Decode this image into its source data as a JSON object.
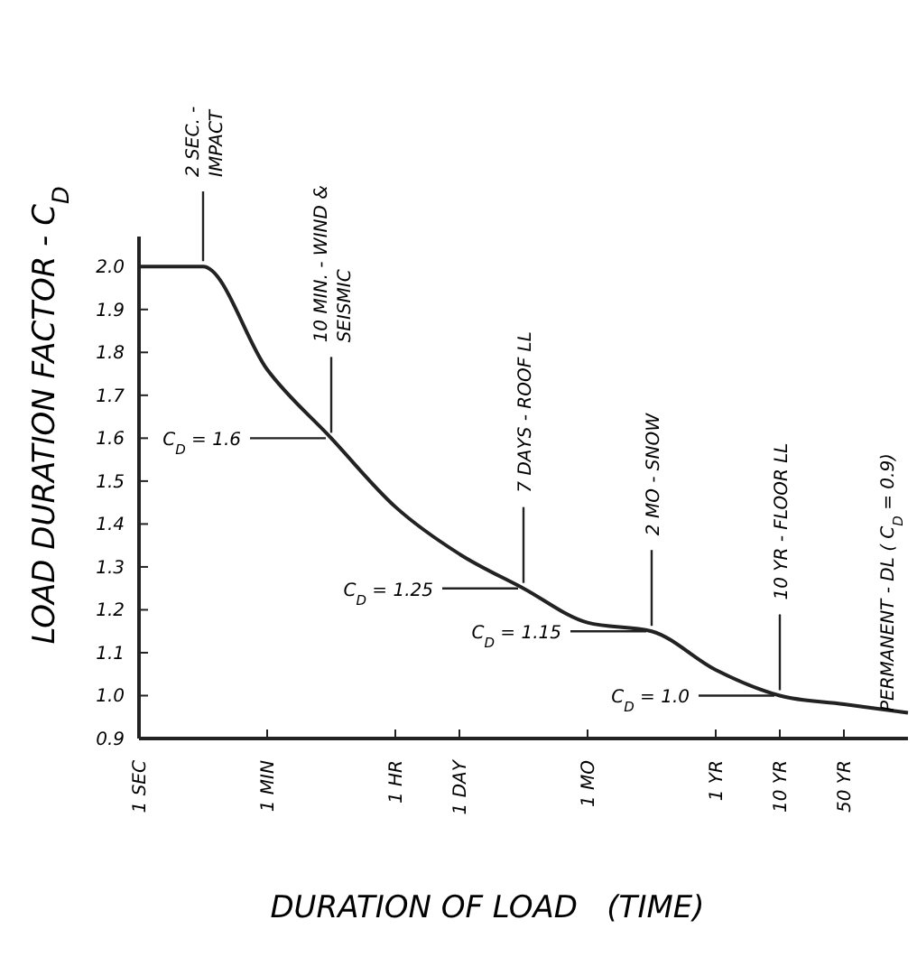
{
  "chart_data": {
    "type": "line",
    "xlabel": "DURATION OF LOAD   (TIME)",
    "ylabel": "LOAD DURATION FACTOR - C$_{D}$",
    "categories": [
      "1 SEC",
      null,
      "1 MIN",
      null,
      "1 HR",
      "1 DAY",
      null,
      "1 MO",
      null,
      "1 YR",
      "10 YR",
      "50 YR",
      null
    ],
    "series": [
      {
        "color": "#222222",
        "values": [
          2.0,
          2.0,
          1.76,
          1.6,
          1.44,
          1.33,
          1.25,
          1.17,
          1.15,
          1.06,
          1.0,
          0.98,
          0.96
        ]
      }
    ],
    "ylim": [
      0.9,
      2.07
    ],
    "yticks": [
      {
        "value": 0.9,
        "label": "0.9"
      },
      {
        "value": 1.0,
        "label": "1.0"
      },
      1.1,
      1.2,
      1.3,
      1.4,
      1.5,
      1.6,
      1.7,
      1.8,
      1.9,
      {
        "value": 2.0,
        "label": "2.0"
      }
    ],
    "grid": false,
    "marker": "none",
    "annotations": [
      {
        "text": "2 SEC. -\nIMPACT",
        "y": 2.0
      },
      {
        "text": "10 MIN. - WIND &\nSEISMIC",
        "y": 1.6
      },
      {
        "text": "7 DAYS - ROOF LL",
        "y": 1.25
      },
      {
        "text": "2 MO - SNOW",
        "y": 1.15
      },
      {
        "text": "10 YR - FLOOR LL",
        "y": 1.0
      },
      "C$_{D}$ = 1.6",
      "C$_{D}$ = 1.25",
      "C$_{D}$ = 1.15",
      "C$_{D}$ = 1.0",
      "PERMANENT - DL   ( C$_{D}$ = 0.9)"
    ]
  }
}
